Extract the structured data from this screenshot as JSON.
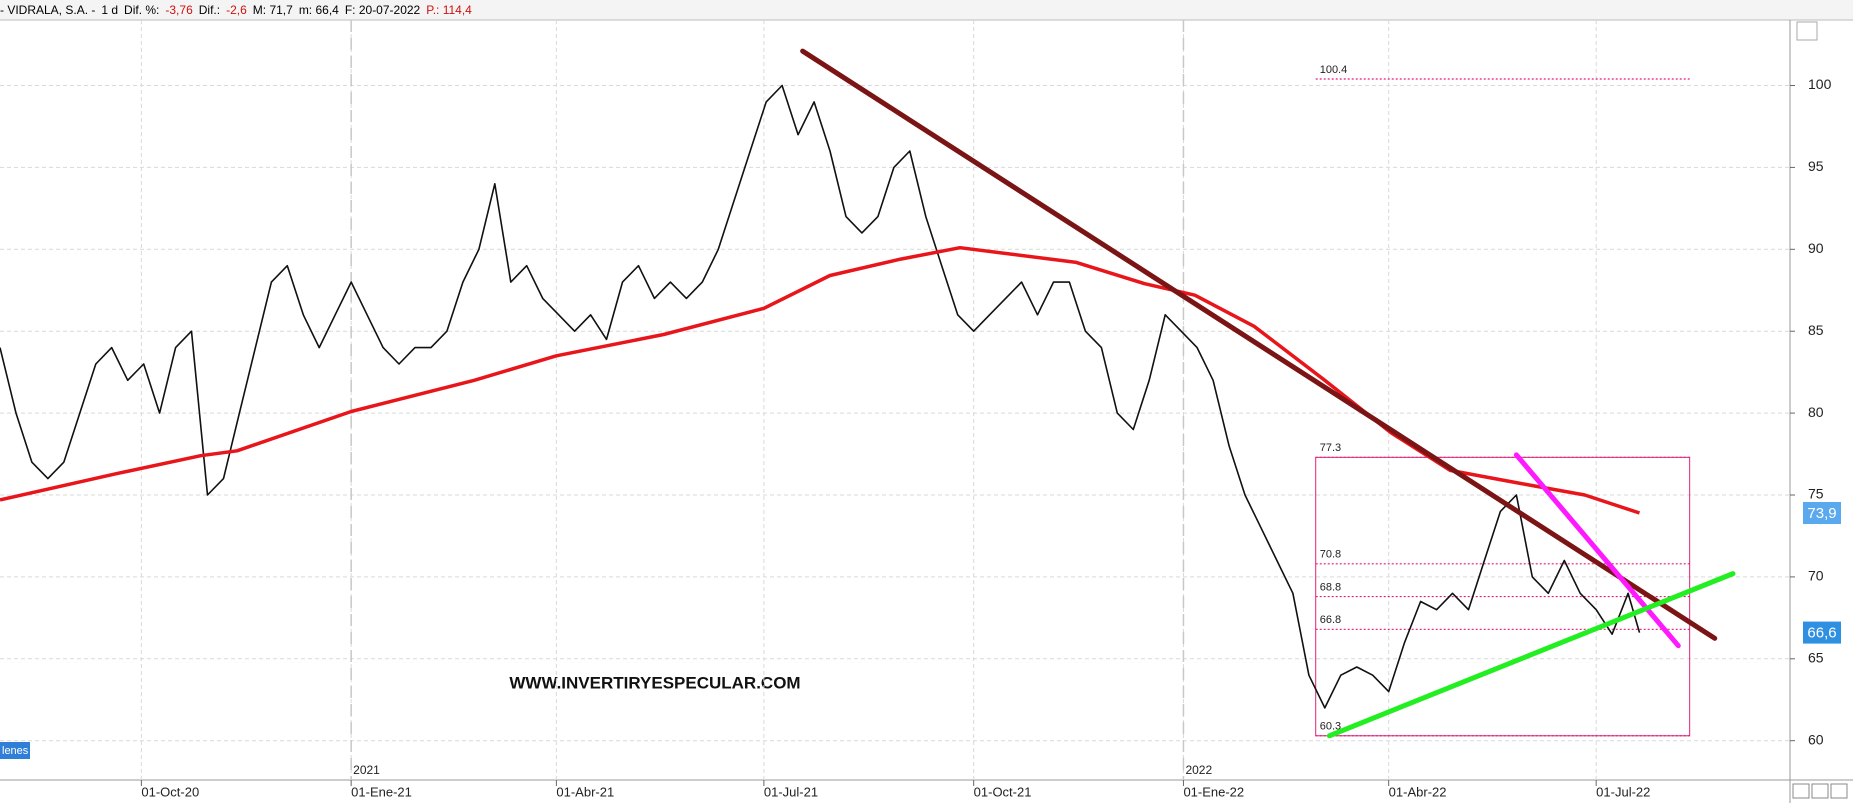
{
  "chart_data": {
    "type": "line",
    "header": [
      {
        "text": "- VIDRALA, S.A. -",
        "color": "#000000"
      },
      {
        "text": "1 d",
        "color": "#000000"
      },
      {
        "text": "Dif. %:",
        "color": "#000000"
      },
      {
        "text": "-3,76",
        "color": "#d01010"
      },
      {
        "text": "Dif.:",
        "color": "#000000"
      },
      {
        "text": "-2,6",
        "color": "#d01010"
      },
      {
        "text": "M: 71,7",
        "color": "#000000"
      },
      {
        "text": "m: 66,4",
        "color": "#000000"
      },
      {
        "text": "F: 20-07-2022",
        "color": "#000000"
      },
      {
        "text": "P.: 114,4",
        "color": "#d01010"
      }
    ],
    "watermark": "WWW.INVERTIRYESPECULAR.COM",
    "panel_label": "lenes",
    "xlim": [
      "2020-07-31",
      "2022-09-24"
    ],
    "xticks": [
      {
        "value": "2020-10-01",
        "label": "01-Oct-20"
      },
      {
        "value": "2021-01-01",
        "label": "01-Ene-21"
      },
      {
        "value": "2021-04-01",
        "label": "01-Abr-21"
      },
      {
        "value": "2021-07-01",
        "label": "01-Jul-21"
      },
      {
        "value": "2021-10-01",
        "label": "01-Oct-21"
      },
      {
        "value": "2022-01-01",
        "label": "01-Ene-22"
      },
      {
        "value": "2022-04-01",
        "label": "01-Abr-22"
      },
      {
        "value": "2022-07-01",
        "label": "01-Jul-22"
      }
    ],
    "year_markers": [
      {
        "value": "2021-01-01",
        "label": "2021"
      },
      {
        "value": "2022-01-01",
        "label": "2022"
      }
    ],
    "ylim": [
      57.6,
      104
    ],
    "yticks": [
      60,
      65,
      70,
      75,
      80,
      85,
      90,
      95,
      100
    ],
    "grid": true,
    "series": [
      {
        "color": "#111111",
        "x": [
          "2020-07-31",
          "2020-08-07",
          "2020-08-14",
          "2020-08-21",
          "2020-08-28",
          "2020-09-04",
          "2020-09-11",
          "2020-09-18",
          "2020-09-25",
          "2020-10-02",
          "2020-10-09",
          "2020-10-16",
          "2020-10-23",
          "2020-10-30",
          "2020-11-06",
          "2020-11-13",
          "2020-11-20",
          "2020-11-27",
          "2020-12-04",
          "2020-12-11",
          "2020-12-18",
          "2020-12-25",
          "2021-01-01",
          "2021-01-08",
          "2021-01-15",
          "2021-01-22",
          "2021-01-29",
          "2021-02-05",
          "2021-02-12",
          "2021-02-19",
          "2021-02-26",
          "2021-03-05",
          "2021-03-12",
          "2021-03-19",
          "2021-03-26",
          "2021-04-02",
          "2021-04-09",
          "2021-04-16",
          "2021-04-23",
          "2021-04-30",
          "2021-05-07",
          "2021-05-14",
          "2021-05-21",
          "2021-05-28",
          "2021-06-04",
          "2021-06-11",
          "2021-06-18",
          "2021-06-25",
          "2021-07-02",
          "2021-07-09",
          "2021-07-16",
          "2021-07-23",
          "2021-07-30",
          "2021-08-06",
          "2021-08-13",
          "2021-08-20",
          "2021-08-27",
          "2021-09-03",
          "2021-09-10",
          "2021-09-17",
          "2021-09-24",
          "2021-10-01",
          "2021-10-08",
          "2021-10-15",
          "2021-10-22",
          "2021-10-29",
          "2021-11-05",
          "2021-11-12",
          "2021-11-19",
          "2021-11-26",
          "2021-12-03",
          "2021-12-10",
          "2021-12-17",
          "2021-12-24",
          "2021-12-31",
          "2022-01-07",
          "2022-01-14",
          "2022-01-21",
          "2022-01-28",
          "2022-02-04",
          "2022-02-11",
          "2022-02-18",
          "2022-02-25",
          "2022-03-04",
          "2022-03-11",
          "2022-03-18",
          "2022-03-25",
          "2022-04-01",
          "2022-04-08",
          "2022-04-15",
          "2022-04-22",
          "2022-04-29",
          "2022-05-06",
          "2022-05-13",
          "2022-05-20",
          "2022-05-27",
          "2022-06-03",
          "2022-06-10",
          "2022-06-17",
          "2022-06-24",
          "2022-07-01",
          "2022-07-08",
          "2022-07-15",
          "2022-07-20"
        ],
        "values": [
          84,
          80,
          77,
          76,
          77,
          80,
          83,
          84,
          82,
          83,
          80,
          84,
          85,
          75,
          76,
          80,
          84,
          88,
          89,
          86,
          84,
          86,
          88,
          86,
          84,
          83,
          84,
          84,
          85,
          88,
          90,
          94,
          88,
          89,
          87,
          86,
          85,
          86,
          84.5,
          88,
          89,
          87,
          88,
          87,
          88,
          90,
          93,
          96,
          99,
          100,
          97,
          99,
          96,
          92,
          91,
          92,
          95,
          96,
          92,
          89,
          86,
          85,
          86,
          87,
          88,
          86,
          88,
          88,
          85,
          84,
          80,
          79,
          82,
          86,
          85,
          84,
          82,
          78,
          75,
          73,
          71,
          69,
          64,
          62,
          64,
          64.5,
          64,
          63,
          66,
          68.5,
          68,
          69,
          68,
          71,
          74,
          75,
          70,
          69,
          71,
          69,
          68,
          66.5,
          69,
          66.6
        ]
      },
      {
        "color": "#e8161b",
        "x": [
          "2020-07-31",
          "2020-09-20",
          "2020-10-27",
          "2020-11-12",
          "2021-01-01",
          "2021-02-24",
          "2021-04-01",
          "2021-05-18",
          "2021-07-01",
          "2021-07-30",
          "2021-08-30",
          "2021-09-25",
          "2021-11-15",
          "2021-12-15",
          "2022-01-06",
          "2022-02-01",
          "2022-03-04",
          "2022-04-02",
          "2022-04-28",
          "2022-05-29",
          "2022-06-26",
          "2022-07-20"
        ],
        "values": [
          74.7,
          76.3,
          77.4,
          77.7,
          80.1,
          82,
          83.5,
          84.8,
          86.4,
          88.4,
          89.4,
          90.1,
          89.2,
          87.9,
          87.2,
          85.3,
          82,
          78.8,
          76.5,
          75.7,
          75,
          73.9
        ]
      }
    ],
    "trendlines": [
      {
        "color": "#7b1414",
        "x": [
          "2021-07-18",
          "2022-08-22"
        ],
        "values": [
          102.1,
          66.25
        ]
      },
      {
        "color": "#ff19ff",
        "x": [
          "2022-05-27",
          "2022-08-06"
        ],
        "values": [
          77.45,
          65.8
        ]
      },
      {
        "color": "#22ee22",
        "x": [
          "2022-03-06",
          "2022-08-30"
        ],
        "values": [
          60.3,
          70.2
        ]
      }
    ],
    "levels": [
      100.4,
      77.3,
      70.8,
      68.8,
      66.8,
      60.3
    ],
    "levels_color": "#e0207a",
    "levels_x": [
      "2022-02-28",
      "2022-08-11"
    ],
    "price_tags": [
      {
        "value": 73.9,
        "label": "73,9"
      },
      {
        "value": 66.6,
        "label": "66,6"
      }
    ]
  }
}
